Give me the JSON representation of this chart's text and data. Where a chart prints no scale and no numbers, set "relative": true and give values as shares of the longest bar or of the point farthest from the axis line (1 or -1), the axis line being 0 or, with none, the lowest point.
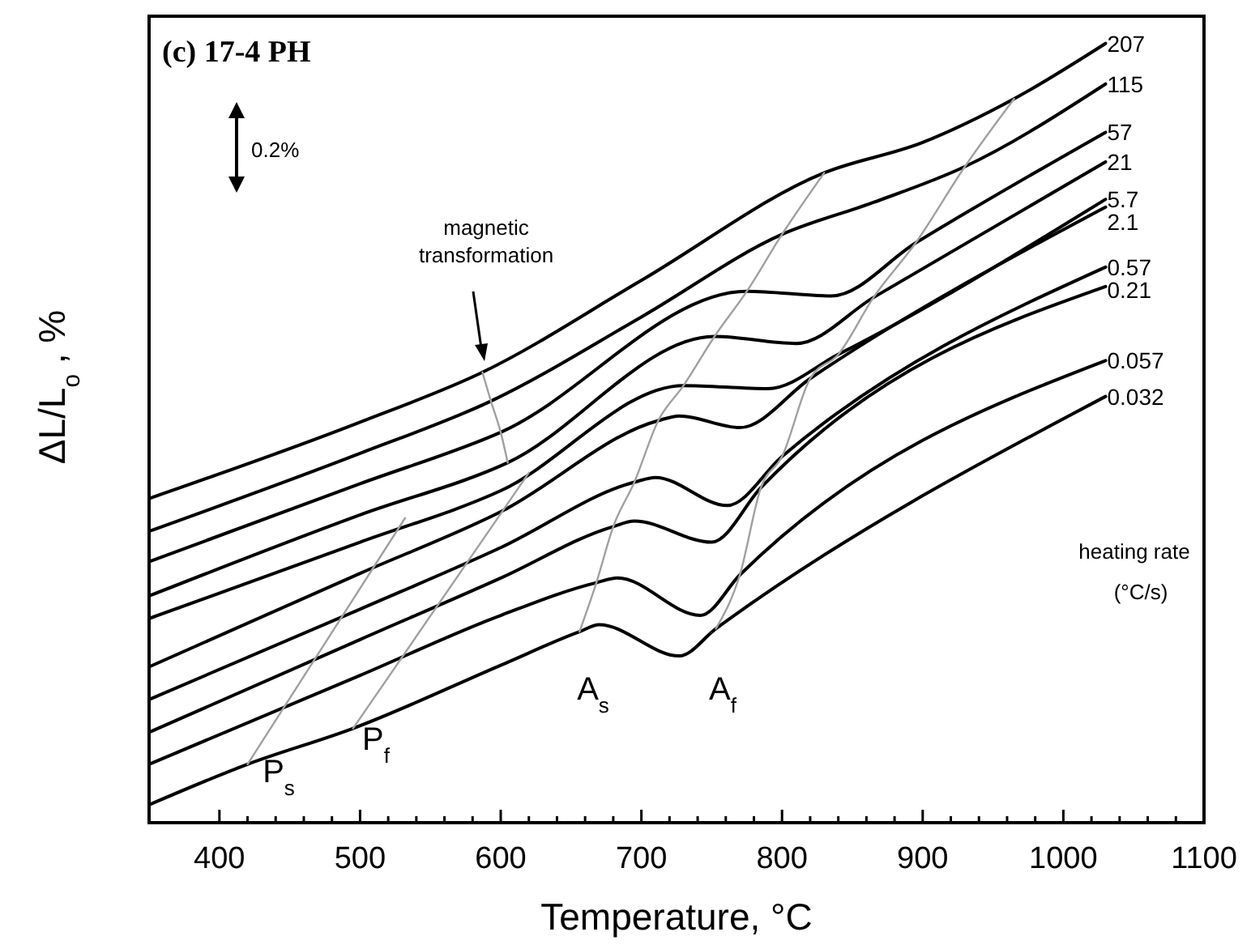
{
  "chart_data": {
    "type": "line",
    "title": "(c) 17-4 PH",
    "xlabel": "Temperature, °C",
    "ylabel": "ΔL/L$_{o}$ , %",
    "relative": true,
    "tick_labels": "x",
    "grid": false,
    "marker": "none",
    "line_style": "solid",
    "xlim": [
      350,
      1100
    ],
    "xticks": [
      400,
      {
        "value": 420,
        "label": null
      },
      {
        "value": 440,
        "label": null
      },
      {
        "value": 460,
        "label": null
      },
      {
        "value": 480,
        "label": null
      },
      500,
      {
        "value": 520,
        "label": null
      },
      {
        "value": 540,
        "label": null
      },
      {
        "value": 560,
        "label": null
      },
      {
        "value": 580,
        "label": null
      },
      600,
      {
        "value": 620,
        "label": null
      },
      {
        "value": 640,
        "label": null
      },
      {
        "value": 660,
        "label": null
      },
      {
        "value": 680,
        "label": null
      },
      700,
      {
        "value": 720,
        "label": null
      },
      {
        "value": 740,
        "label": null
      },
      {
        "value": 760,
        "label": null
      },
      {
        "value": 780,
        "label": null
      },
      800,
      {
        "value": 820,
        "label": null
      },
      {
        "value": 840,
        "label": null
      },
      {
        "value": 860,
        "label": null
      },
      {
        "value": 880,
        "label": null
      },
      900,
      {
        "value": 920,
        "label": null
      },
      {
        "value": 940,
        "label": null
      },
      {
        "value": 960,
        "label": null
      },
      {
        "value": 980,
        "label": null
      },
      1000,
      {
        "value": 1020,
        "label": null
      },
      {
        "value": 1040,
        "label": null
      },
      {
        "value": 1060,
        "label": null
      },
      {
        "value": 1080,
        "label": null
      },
      1100
    ],
    "series": [
      {
        "name": "207",
        "color": "#000000",
        "x": [
          350,
          500,
          587,
          700,
          830,
          900,
          965,
          1030
        ],
        "values": [
          0.416,
          0.514,
          0.578,
          0.696,
          0.834,
          0.873,
          0.929,
          1
        ]
      },
      {
        "name": "115",
        "color": "#000000",
        "x": [
          350,
          500,
          593,
          700,
          800,
          865,
          930,
          1030
        ],
        "values": [
          0.374,
          0.474,
          0.541,
          0.649,
          0.755,
          0.796,
          0.842,
          0.948
        ]
      },
      {
        "name": "57",
        "color": "#000000",
        "x": [
          350,
          500,
          600,
          775,
          835,
          895,
          1030
        ],
        "values": [
          0.335,
          0.435,
          0.501,
          0.682,
          0.676,
          0.744,
          0.886
        ]
      },
      {
        "name": "21",
        "color": "#000000",
        "x": [
          350,
          500,
          605,
          752,
          810,
          865,
          1030
        ],
        "values": [
          0.291,
          0.395,
          0.462,
          0.624,
          0.615,
          0.674,
          0.848
        ]
      },
      {
        "name": "5.7",
        "color": "#000000",
        "x": [
          350,
          500,
          600,
          730,
          790,
          840,
          1030
        ],
        "values": [
          0.262,
          0.36,
          0.426,
          0.561,
          0.557,
          0.601,
          0.8
        ]
      },
      {
        "name": "2.1",
        "color": "#000000",
        "x": [
          350,
          500,
          600,
          712,
          727,
          770,
          820,
          1030
        ],
        "values": [
          0.2,
          0.32,
          0.399,
          0.516,
          0.522,
          0.507,
          0.57,
          0.79
        ]
      },
      {
        "name": "0.57",
        "color": "#000000",
        "x": [
          350,
          500,
          600,
          695,
          710,
          761,
          800,
          1030
        ],
        "values": [
          0.158,
          0.274,
          0.353,
          0.437,
          0.443,
          0.407,
          0.47,
          0.713
        ]
      },
      {
        "name": "0.21",
        "color": "#000000",
        "x": [
          350,
          500,
          600,
          680,
          695,
          750,
          785,
          1030
        ],
        "values": [
          0.116,
          0.235,
          0.314,
          0.38,
          0.387,
          0.36,
          0.43,
          0.688
        ]
      },
      {
        "name": "0.057",
        "color": "#000000",
        "x": [
          350,
          500,
          600,
          668,
          683,
          742,
          770,
          1030
        ],
        "values": [
          0.075,
          0.189,
          0.266,
          0.308,
          0.314,
          0.266,
          0.318,
          0.593
        ]
      },
      {
        "name": "0.032",
        "color": "#000000",
        "x": [
          350,
          420,
          495,
          600,
          656,
          670,
          727,
          753,
          1030
        ],
        "values": [
          0.023,
          0.075,
          0.121,
          0.202,
          0.245,
          0.254,
          0.214,
          0.249,
          0.547
        ]
      },
      {
        "color": "#a0a0a0",
        "x": [
          587,
          593,
          600,
          605
        ],
        "values": [
          0.578,
          0.541,
          0.501,
          0.462
        ]
      },
      {
        "color": "#a0a0a0",
        "x": [
          420,
          532
        ],
        "values": [
          0.075,
          0.391
        ]
      },
      {
        "color": "#a0a0a0",
        "x": [
          495,
          620
        ],
        "values": [
          0.121,
          0.449
        ]
      },
      {
        "color": "#a0a0a0",
        "x": [
          656,
          668,
          680,
          695,
          712,
          730,
          752,
          775,
          800,
          830
        ],
        "values": [
          0.245,
          0.308,
          0.38,
          0.437,
          0.516,
          0.561,
          0.624,
          0.682,
          0.755,
          0.834
        ]
      },
      {
        "color": "#a0a0a0",
        "x": [
          753,
          770,
          785,
          800,
          820,
          840,
          865,
          895,
          930,
          965
        ],
        "values": [
          0.249,
          0.318,
          0.43,
          0.47,
          0.57,
          0.601,
          0.674,
          0.744,
          0.842,
          0.929
        ]
      }
    ],
    "annotations": [
      "magnetic transformation",
      "A$_{s}$",
      "A$_{f}$",
      "P$_{s}$",
      "P$_{f}$",
      "0.2%",
      "heating rate",
      "(°C/s)"
    ]
  }
}
